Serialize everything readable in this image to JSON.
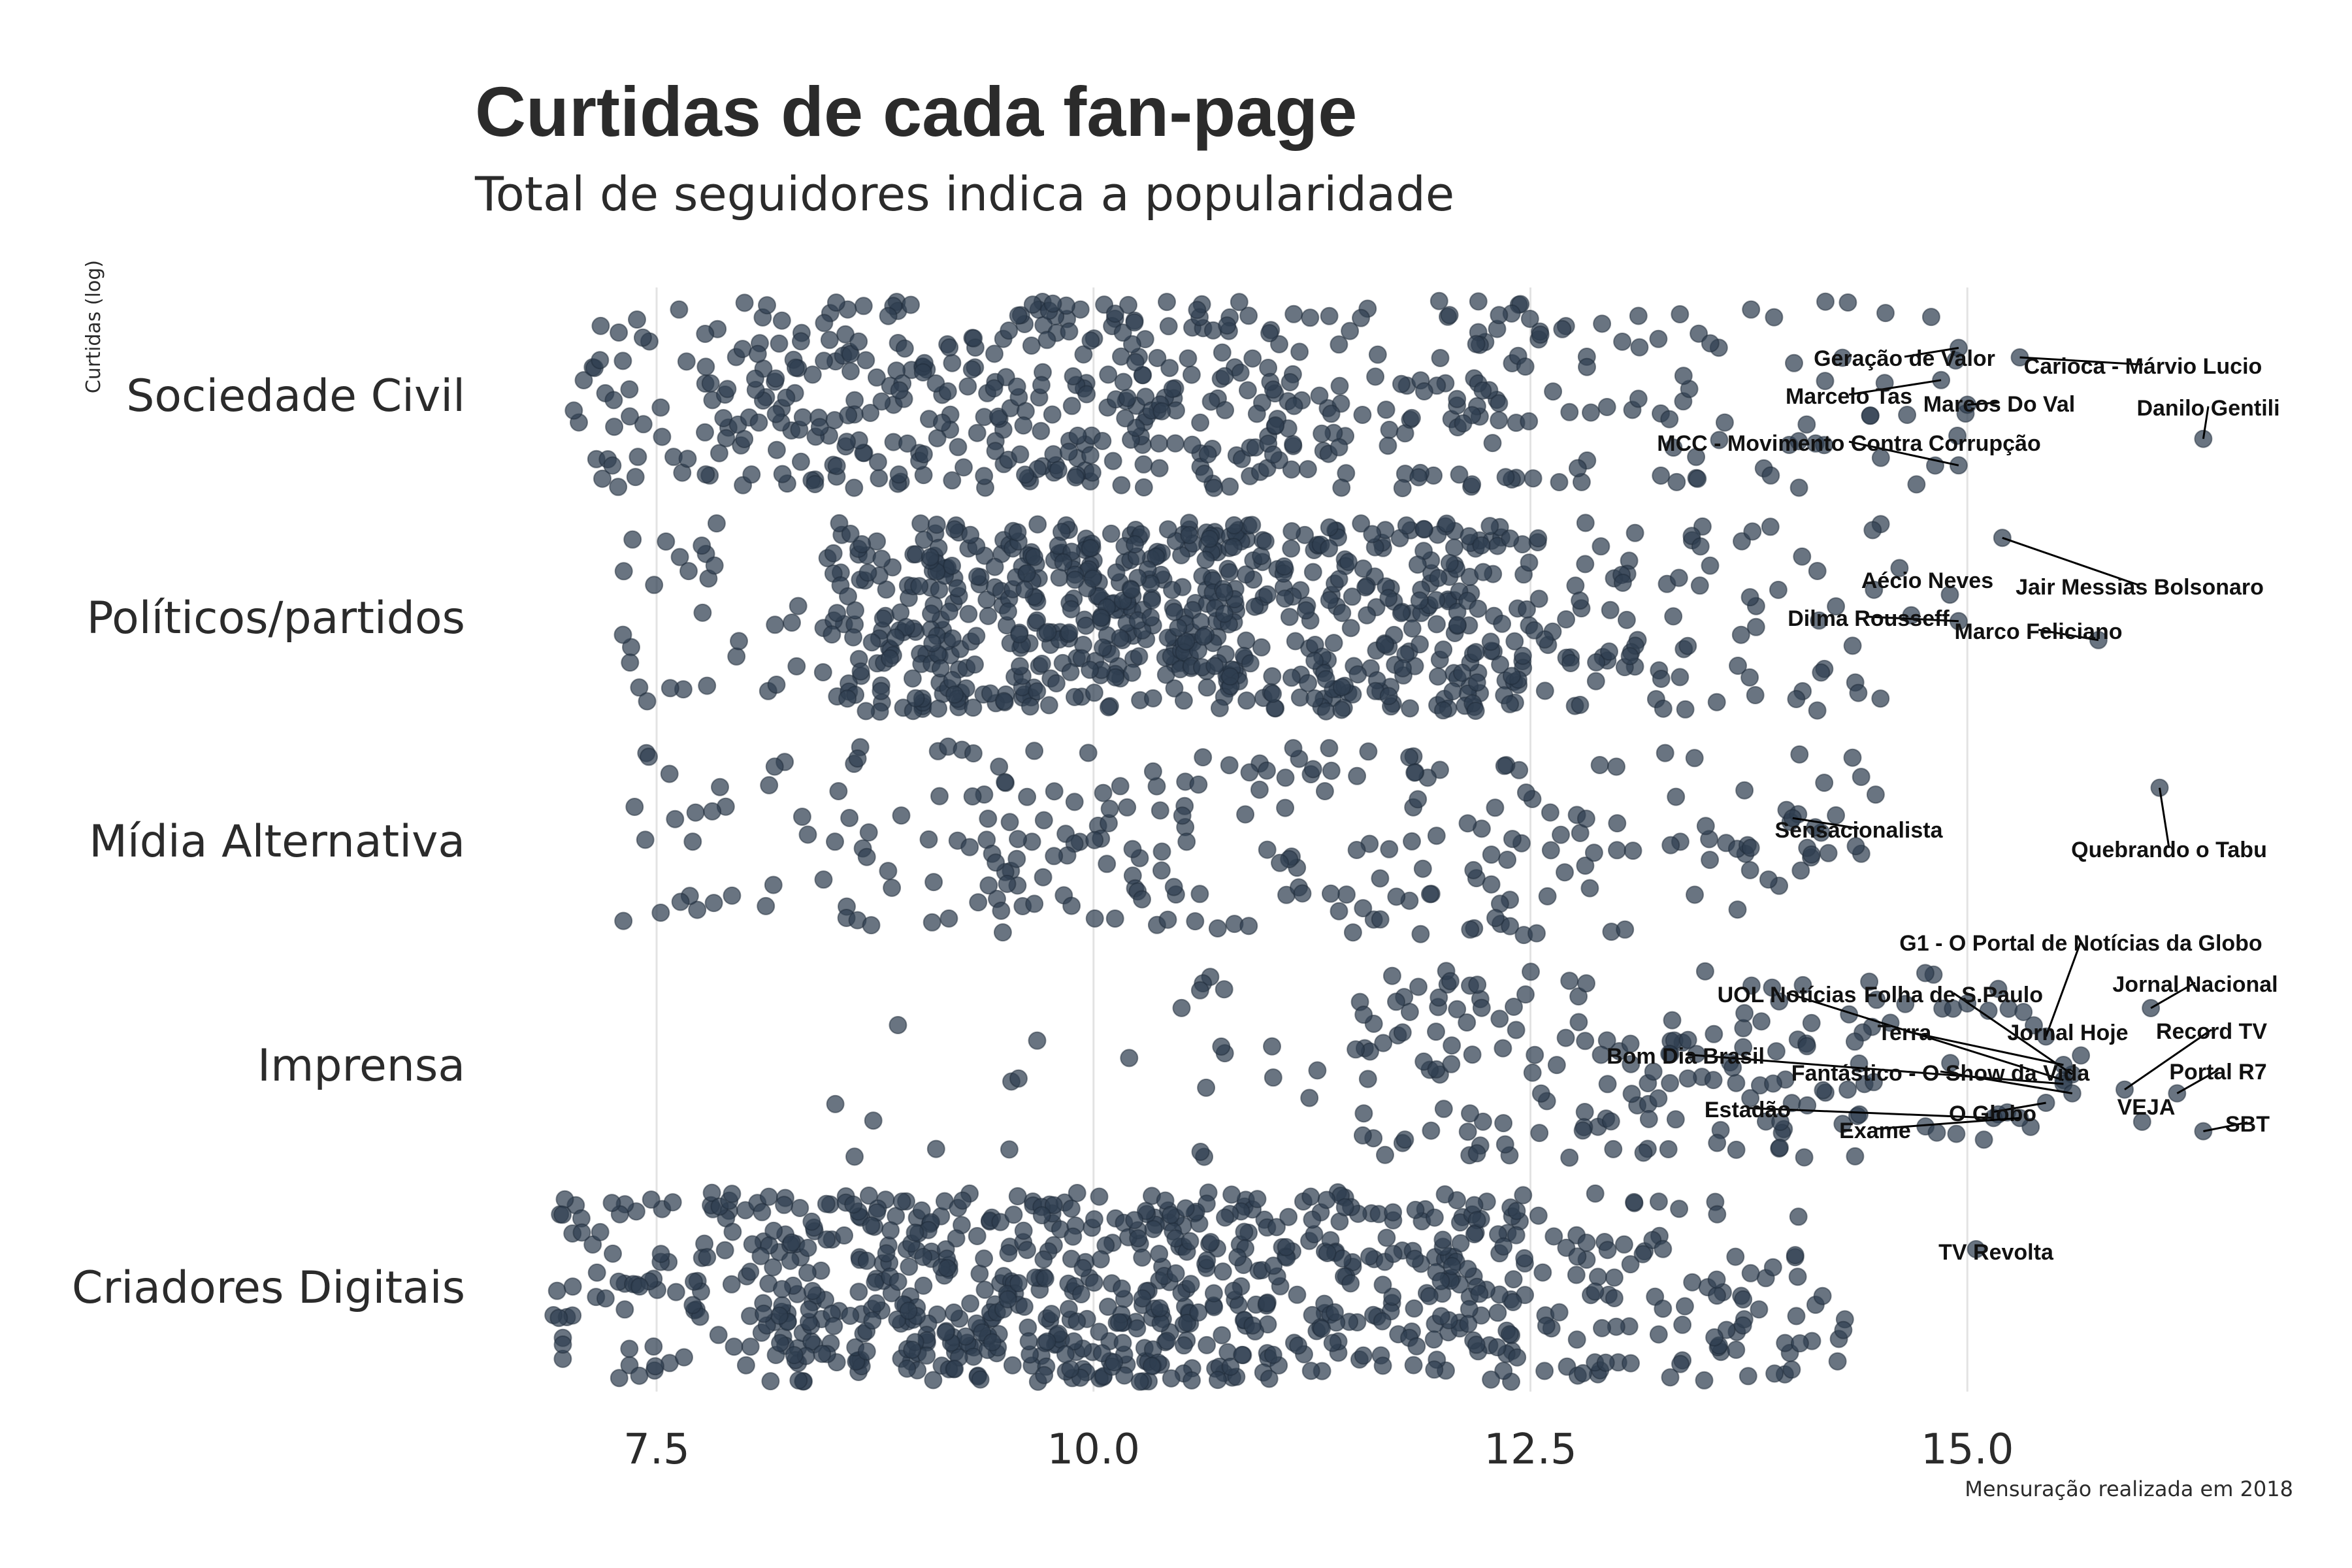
{
  "chart_data": {
    "type": "scatter",
    "title": "Curtidas de cada fan-page",
    "subtitle": "Total de seguidores indica a popularidade",
    "ylabel": "Curtidas (log)",
    "caption": "Mensuração realizada em 2018",
    "x_ticks": [
      7.5,
      10.0,
      12.5,
      15.0
    ],
    "x_tick_labels": [
      "7.5",
      "10.0",
      "12.5",
      "15.0"
    ],
    "xlim": [
      6.9,
      16.9
    ],
    "grid": "vertical",
    "point_color": "#2f3e50",
    "categories": [
      "Sociedade Civil",
      "Políticos/partidos",
      "Mídia Alternativa",
      "Imprensa",
      "Criadores Digitais"
    ],
    "groups": [
      {
        "category": "Sociedade Civil",
        "distribution": {
          "count": 520,
          "segments": [
            [
              7.0,
              8.0,
              0.1
            ],
            [
              8.0,
              9.5,
              0.27
            ],
            [
              9.5,
              11.0,
              0.3
            ],
            [
              11.0,
              12.5,
              0.2
            ],
            [
              12.5,
              13.5,
              0.07
            ],
            [
              13.5,
              14.5,
              0.04
            ],
            [
              14.5,
              15.0,
              0.02
            ]
          ]
        },
        "labeled": [
          {
            "name": "Geração de Valor",
            "x": 14.95,
            "y": 0.75
          },
          {
            "name": "Carioca - Márvio Lucio",
            "x": 15.3,
            "y": 0.7
          },
          {
            "name": "Marcelo Tas",
            "x": 14.85,
            "y": 0.58
          },
          {
            "name": "Marcos Do Val",
            "x": 15.0,
            "y": 0.45
          },
          {
            "name": "Danilo Gentili",
            "x": 16.35,
            "y": 0.27
          },
          {
            "name": "MCC - Movimento Contra Corrupção",
            "x": 14.95,
            "y": 0.13
          }
        ]
      },
      {
        "category": "Políticos/partidos",
        "distribution": {
          "count": 780,
          "segments": [
            [
              7.3,
              8.5,
              0.04
            ],
            [
              8.5,
              9.5,
              0.2
            ],
            [
              9.5,
              11.0,
              0.38
            ],
            [
              11.0,
              12.5,
              0.27
            ],
            [
              12.5,
              13.5,
              0.07
            ],
            [
              13.5,
              14.8,
              0.04
            ]
          ]
        },
        "labeled": [
          {
            "name": "Aécio Neves",
            "x": 14.9,
            "y": 0.62
          },
          {
            "name": "Jair Messias Bolsonaro",
            "x": 15.2,
            "y": 0.92
          },
          {
            "name": "Dilma Rousseff",
            "x": 14.95,
            "y": 0.48
          },
          {
            "name": "Marco Feliciano",
            "x": 15.75,
            "y": 0.38
          }
        ]
      },
      {
        "category": "Mídia Alternativa",
        "distribution": {
          "count": 260,
          "segments": [
            [
              7.3,
              8.5,
              0.1
            ],
            [
              8.5,
              10.0,
              0.25
            ],
            [
              10.0,
              11.5,
              0.25
            ],
            [
              11.5,
              13.0,
              0.25
            ],
            [
              13.0,
              14.5,
              0.15
            ]
          ]
        },
        "labeled": [
          {
            "name": "Sensacionalista",
            "x": 14.0,
            "y": 0.62
          },
          {
            "name": "Quebrando o Tabu",
            "x": 16.1,
            "y": 0.78
          }
        ]
      },
      {
        "category": "Imprensa",
        "distribution": {
          "count": 200,
          "segments": [
            [
              8.5,
              10.5,
              0.05
            ],
            [
              10.5,
              11.5,
              0.07
            ],
            [
              11.5,
              12.5,
              0.28
            ],
            [
              12.5,
              13.5,
              0.25
            ],
            [
              13.5,
              14.5,
              0.25
            ],
            [
              14.5,
              15.5,
              0.1
            ]
          ]
        },
        "labeled": [
          {
            "name": "G1 - O Portal de Notícias da Globo",
            "x": 15.45,
            "y": 0.65
          },
          {
            "name": "Jornal Nacional",
            "x": 16.05,
            "y": 0.8
          },
          {
            "name": "UOL Notícias",
            "x": 15.55,
            "y": 0.42
          },
          {
            "name": "Folha de S.Paulo",
            "x": 15.6,
            "y": 0.45
          },
          {
            "name": "Terra",
            "x": 15.55,
            "y": 0.5
          },
          {
            "name": "Jornal Hoje",
            "x": 15.65,
            "y": 0.55
          },
          {
            "name": "Record TV",
            "x": 15.9,
            "y": 0.37
          },
          {
            "name": "Bom Dia Brasil",
            "x": 15.55,
            "y": 0.4
          },
          {
            "name": "Fantástico - O Show da Vida",
            "x": 15.6,
            "y": 0.35
          },
          {
            "name": "Portal R7",
            "x": 16.2,
            "y": 0.35
          },
          {
            "name": "Estadão",
            "x": 15.15,
            "y": 0.22
          },
          {
            "name": "VEJA",
            "x": 16.0,
            "y": 0.2
          },
          {
            "name": "O Globo",
            "x": 15.45,
            "y": 0.3
          },
          {
            "name": "SBT",
            "x": 16.35,
            "y": 0.15
          },
          {
            "name": "Exame",
            "x": 15.3,
            "y": 0.22
          }
        ]
      },
      {
        "category": "Criadores Digitais",
        "distribution": {
          "count": 820,
          "segments": [
            [
              6.9,
              8.0,
              0.09
            ],
            [
              8.0,
              9.5,
              0.28
            ],
            [
              9.5,
              11.0,
              0.3
            ],
            [
              11.0,
              12.5,
              0.21
            ],
            [
              12.5,
              13.5,
              0.07
            ],
            [
              13.5,
              14.3,
              0.05
            ]
          ]
        },
        "labeled": [
          {
            "name": "TV Revolta",
            "x": 15.05,
            "y": 0.7
          }
        ]
      }
    ]
  }
}
